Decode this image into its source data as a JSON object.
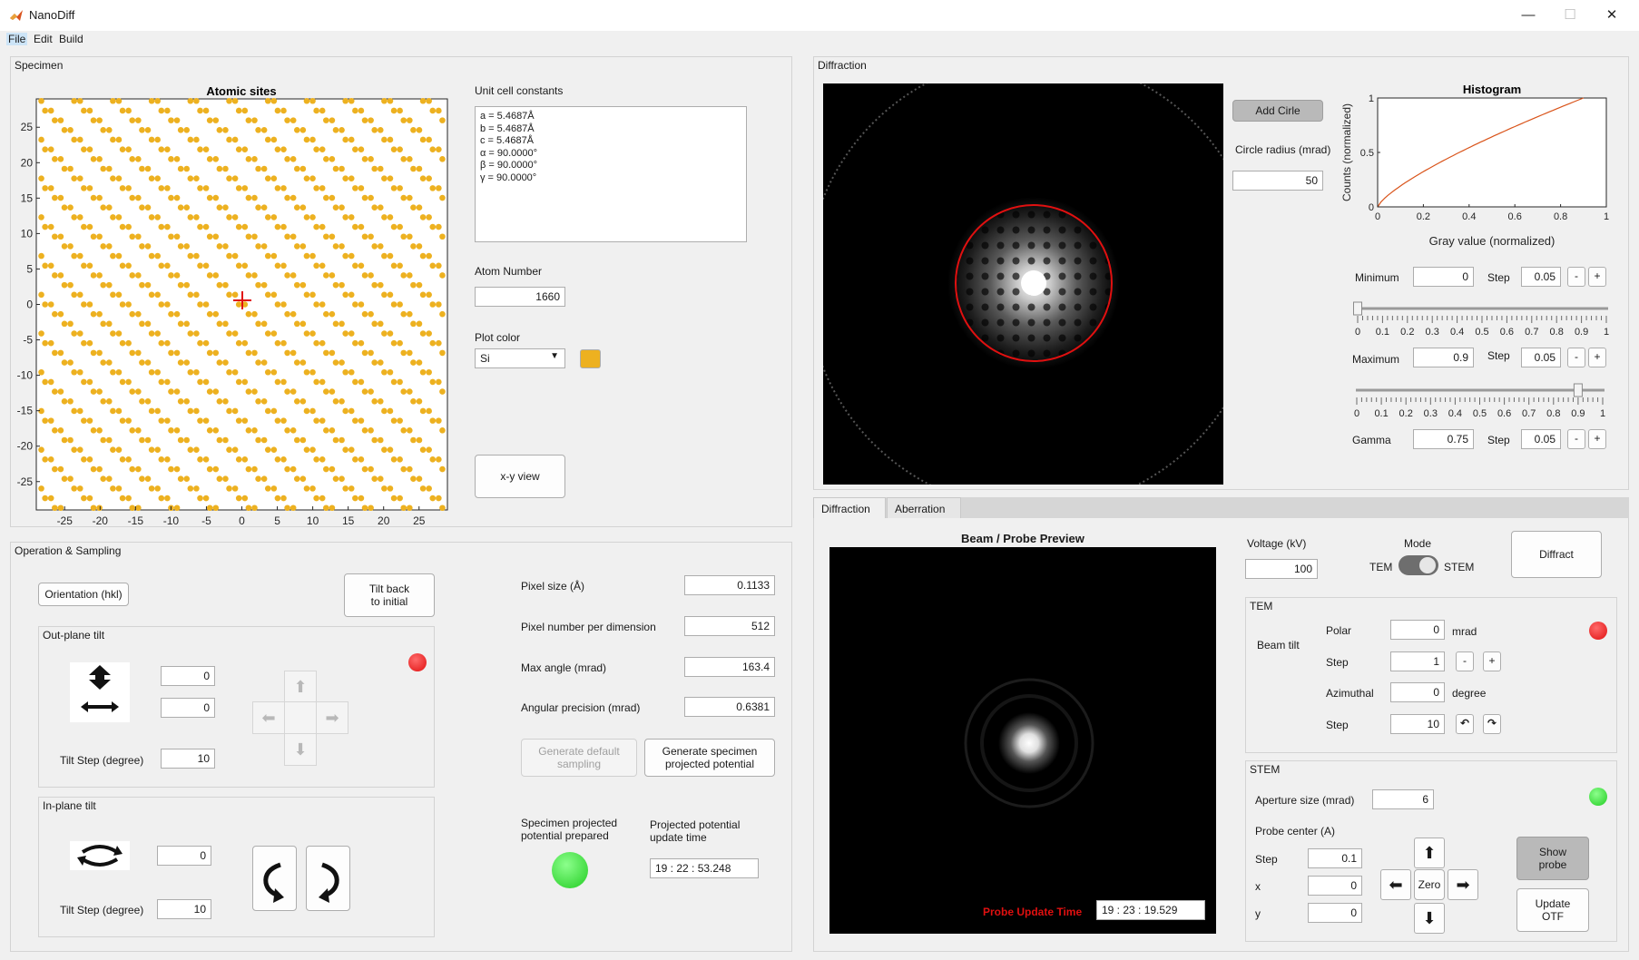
{
  "window": {
    "title": "NanoDiff",
    "menu": [
      "File",
      "Edit",
      "Build"
    ],
    "controls": {
      "minimize": "—",
      "maximize": "☐",
      "close": "✕"
    }
  },
  "specimen": {
    "panel_title": "Specimen",
    "plot": {
      "title": "Atomic sites",
      "xticks": [
        "-25",
        "-20",
        "-15",
        "-10",
        "-5",
        "0",
        "5",
        "10",
        "15",
        "20",
        "25"
      ],
      "yticks": [
        "25",
        "20",
        "15",
        "10",
        "5",
        "0",
        "-5",
        "-10",
        "-15",
        "-20",
        "-25"
      ],
      "xlim": [
        -29,
        29
      ],
      "ylim": [
        -29,
        29
      ],
      "atom_color": "#EDB120",
      "marker_color": "#e01010"
    },
    "unit_cell_label": "Unit cell constants",
    "unit_cell": [
      "a = 5.4687Å",
      "b = 5.4687Å",
      "c = 5.4687Å",
      "α = 90.0000°",
      "β = 90.0000°",
      "γ = 90.0000°"
    ],
    "atom_number_label": "Atom Number",
    "atom_number": "1660",
    "plot_color_label": "Plot color",
    "plot_color_value": "Si",
    "swatch_color": "#EDB120",
    "xy_view_btn": "x-y view"
  },
  "operation": {
    "panel_title": "Operation & Sampling",
    "orientation_btn": "Orientation (hkl)",
    "tilt_back_btn": [
      "Tilt back",
      "to initial"
    ],
    "outplane": {
      "title": "Out-plane tilt",
      "value1": "0",
      "value2": "0",
      "tilt_step_label": "Tilt Step (degree)",
      "tilt_step": "10",
      "lamp_color": "#e01010"
    },
    "inplane": {
      "title": "In-plane tilt",
      "value": "0",
      "tilt_step_label": "Tilt Step (degree)",
      "tilt_step": "10"
    },
    "pixel_size_label": "Pixel size (Å)",
    "pixel_size": "0.1133",
    "pixel_number_label": "Pixel number per dimension",
    "pixel_number": "512",
    "max_angle_label": "Max angle (mrad)",
    "max_angle": "163.4",
    "angular_precision_label": "Angular precision (mrad)",
    "angular_precision": "0.6381",
    "gen_default_btn": [
      "Generate default",
      "sampling"
    ],
    "gen_specimen_btn": [
      "Generate specimen",
      "projected potential"
    ],
    "potential_prepared_label": [
      "Specimen projected",
      "potential prepared"
    ],
    "potential_time_label": [
      "Projected potential",
      "update time"
    ],
    "potential_time": "19 : 22 : 53.248",
    "lamp_color": "#22cc22"
  },
  "diffraction": {
    "panel_title": "Diffraction",
    "add_circle_btn": "Add Cirle",
    "circle_radius_label": "Circle radius (mrad)",
    "circle_radius": "50",
    "histogram": {
      "title": "Histogram",
      "xlabel": "Gray value (normalized)",
      "ylabel": "Counts (normalized)",
      "xticks": [
        "0",
        "0.2",
        "0.4",
        "0.6",
        "0.8",
        "1"
      ],
      "yticks": [
        "1",
        "0.5",
        "0"
      ],
      "curve_color": "#D95319"
    },
    "minimum_label": "Minimum",
    "minimum": "0",
    "step_label": "Step",
    "min_step": "0.05",
    "maximum_label": "Maximum",
    "maximum": "0.9",
    "max_step": "0.05",
    "gamma_label": "Gamma",
    "gamma": "0.75",
    "gamma_step": "0.05",
    "slider_ticks": [
      "0",
      "0.1",
      "0.2",
      "0.3",
      "0.4",
      "0.5",
      "0.6",
      "0.7",
      "0.8",
      "0.9",
      "1"
    ],
    "min_slider_value": 0,
    "max_slider_value": 0.9,
    "minus": "-",
    "plus": "+"
  },
  "tabs": [
    "Diffraction",
    "Aberration"
  ],
  "beam": {
    "title": "Beam / Probe Preview",
    "probe_update_label": "Probe Update Time",
    "probe_update_time": "19 : 23 : 19.529",
    "voltage_label": "Voltage (kV)",
    "voltage": "100",
    "mode_label": "Mode",
    "tem_label": "TEM",
    "stem_label": "STEM",
    "diffract_btn": "Diffract"
  },
  "tem": {
    "title": "TEM",
    "beam_tilt_label": "Beam tilt",
    "polar_label": "Polar",
    "polar": "0",
    "polar_unit": "mrad",
    "step_label": "Step",
    "polar_step": "1",
    "azimuthal_label": "Azimuthal",
    "azimuthal": "0",
    "azimuthal_unit": "degree",
    "az_step": "10",
    "lamp_color": "#e01010"
  },
  "stem": {
    "title": "STEM",
    "aperture_label": "Aperture size (mrad)",
    "aperture": "6",
    "probe_center_label": "Probe center (A)",
    "step_label": "Step",
    "step": "0.1",
    "x_label": "x",
    "x": "0",
    "y_label": "y",
    "y": "0",
    "zero_btn": "Zero",
    "show_probe_btn": [
      "Show",
      "probe"
    ],
    "update_otf_btn": [
      "Update",
      "OTF"
    ],
    "lamp_color": "#22cc22"
  }
}
